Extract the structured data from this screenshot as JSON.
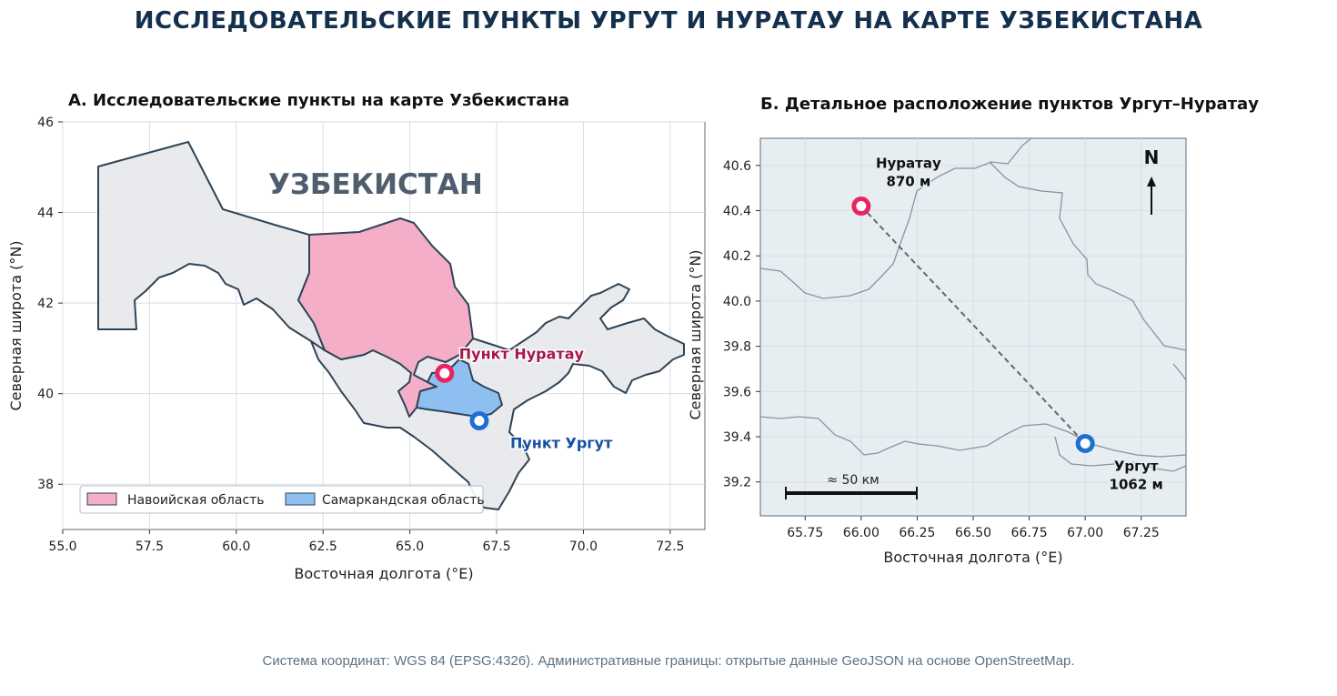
{
  "title": "ИССЛЕДОВАТЕЛЬСКИЕ ПУНКТЫ УРГУТ И НУРАТАУ НА КАРТЕ УЗБЕКИСТАНА",
  "panel_a": {
    "title": "А. Исследовательские пункты на карте Узбекистана",
    "country_label": "УЗБЕКИСТАН",
    "xlabel": "Восточная долгота (°E)",
    "ylabel": "Северная широта (°N)",
    "xlim": [
      55.0,
      73.5
    ],
    "ylim": [
      37.0,
      46.0
    ],
    "xticks": [
      "55.0",
      "57.5",
      "60.0",
      "62.5",
      "65.0",
      "67.5",
      "70.0",
      "72.5"
    ],
    "yticks": [
      "38",
      "40",
      "42",
      "44",
      "46"
    ],
    "points": [
      {
        "name": "Пункт Нуратау",
        "lon": 66.0,
        "lat": 40.45,
        "color": "#e8245f",
        "label_color": "#a4174c"
      },
      {
        "name": "Пункт Ургут",
        "lon": 67.0,
        "lat": 39.4,
        "color": "#1f6fd1",
        "label_color": "#1650a4"
      }
    ],
    "legend": [
      {
        "label": "Навоийская область",
        "color": "#f5aec8"
      },
      {
        "label": "Самаркандская область",
        "color": "#8fbff0"
      }
    ],
    "colors": {
      "land": "#e8eaee",
      "border": "#2f4456",
      "navoi": "#f5aec8",
      "samarkand": "#8fbff0"
    }
  },
  "panel_b": {
    "title": "Б. Детальное расположение пунктов Ургут–Нуратау",
    "xlabel": "Восточная долгота (°E)",
    "ylabel": "Северная широта (°N)",
    "xlim": [
      65.55,
      67.45
    ],
    "ylim": [
      39.05,
      40.72
    ],
    "xticks": [
      "65.75",
      "66.00",
      "66.25",
      "66.50",
      "66.75",
      "67.00",
      "67.25"
    ],
    "yticks": [
      "39.2",
      "39.4",
      "39.6",
      "39.8",
      "40.0",
      "40.2",
      "40.4",
      "40.6"
    ],
    "north_label": "N",
    "scale_label": "≈ 50 км",
    "points": [
      {
        "name": "Нуратау",
        "elevation": "870 м",
        "lon": 66.0,
        "lat": 40.42,
        "color": "#e8245f"
      },
      {
        "name": "Ургут",
        "elevation": "1062 м",
        "lon": 67.0,
        "lat": 39.37,
        "color": "#1f6fd1"
      }
    ],
    "colors": {
      "background": "#e7eef2",
      "boundary": "#8495a2",
      "route": "#666666"
    }
  },
  "footer": "Система координат: WGS 84 (EPSG:4326). Административные границы: открытые данные GeoJSON на основе OpenStreetMap."
}
